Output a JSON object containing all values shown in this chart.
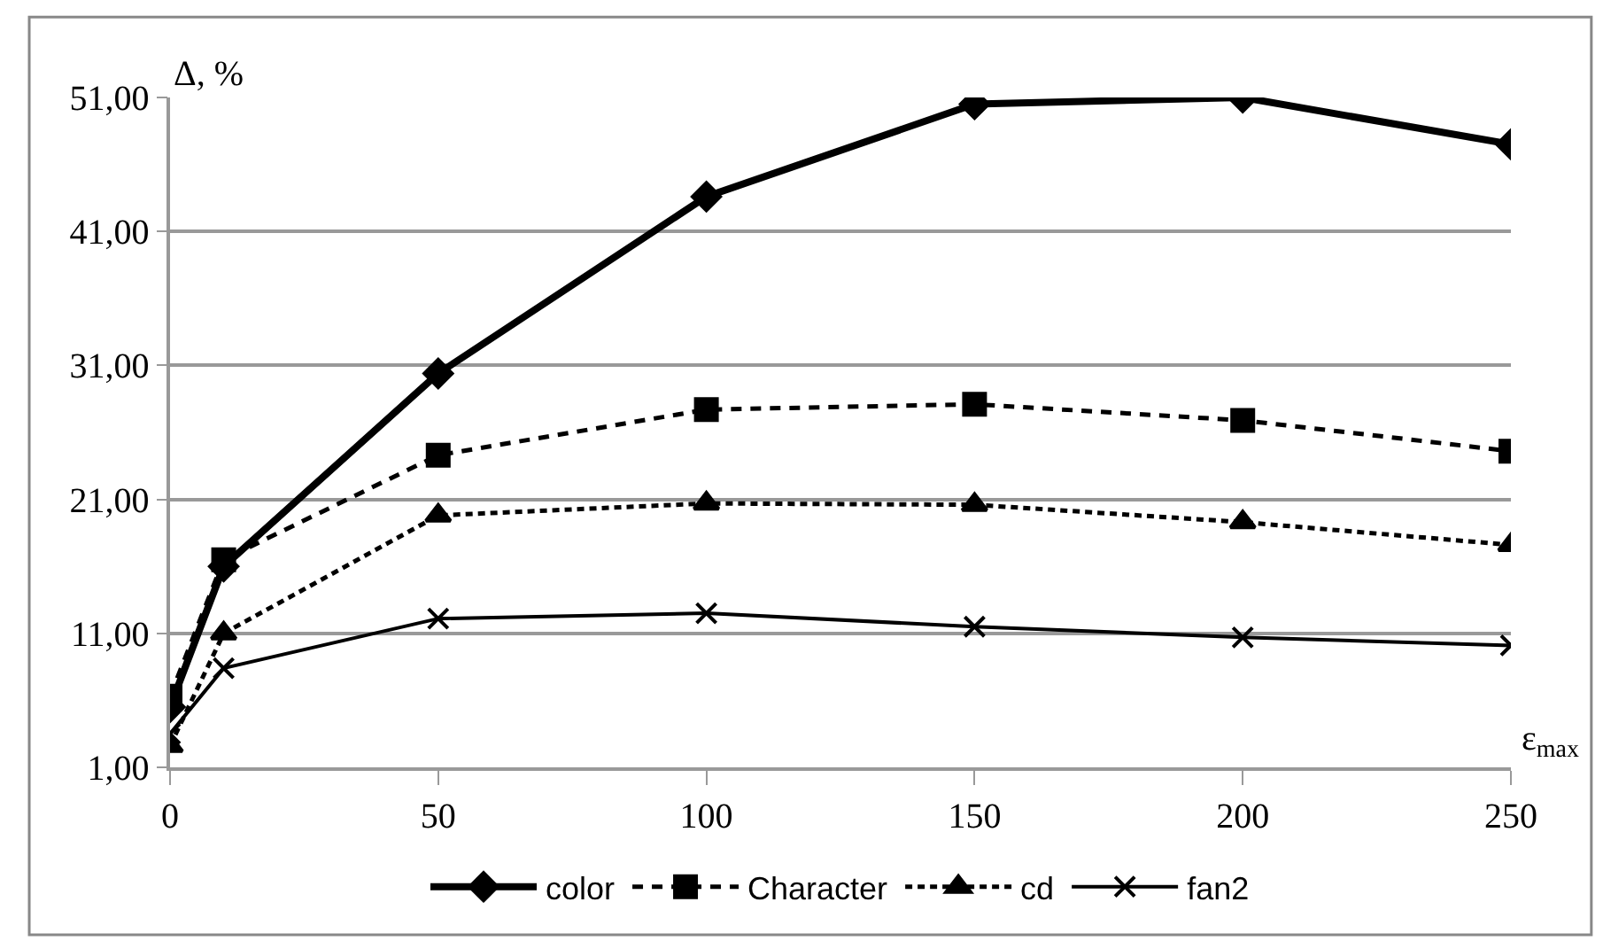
{
  "chart_data": {
    "type": "line",
    "xlabel": "ε$_{max}$",
    "ylabel": "Δ, %",
    "x": [
      0,
      10,
      50,
      100,
      150,
      200,
      250
    ],
    "series": [
      {
        "name": "color",
        "color": "#000000",
        "marker": "diamond",
        "line_style": "solid",
        "values": [
          5.5,
          16.0,
          30.4,
          43.6,
          50.5,
          51.0,
          47.5
        ]
      },
      {
        "name": "Character",
        "color": "#000000",
        "marker": "square",
        "line_style": "dashed",
        "values": [
          6.3,
          16.5,
          24.3,
          27.7,
          28.1,
          26.9,
          24.6
        ]
      },
      {
        "name": "cd",
        "color": "#000000",
        "marker": "triangle",
        "line_style": "dotted",
        "values": [
          2.6,
          11.0,
          19.8,
          20.7,
          20.6,
          19.3,
          17.6
        ]
      },
      {
        "name": "fan2",
        "color": "#000000",
        "marker": "cross",
        "line_style": "solid",
        "values": [
          3.5,
          8.4,
          12.1,
          12.5,
          11.5,
          10.7,
          10.1
        ]
      }
    ],
    "xlim": [
      0,
      250
    ],
    "xticks": [
      0,
      50,
      100,
      150,
      200,
      250
    ],
    "ylim": [
      1,
      51
    ],
    "yticks": [
      {
        "value": 1,
        "label": "1,00"
      },
      {
        "value": 11,
        "label": "11,00"
      },
      {
        "value": 21,
        "label": "21,00"
      },
      {
        "value": 31,
        "label": "31,00"
      },
      {
        "value": 41,
        "label": "41,00"
      },
      {
        "value": 51,
        "label": "51,00"
      }
    ],
    "grid": "y",
    "legend": "bottom"
  }
}
